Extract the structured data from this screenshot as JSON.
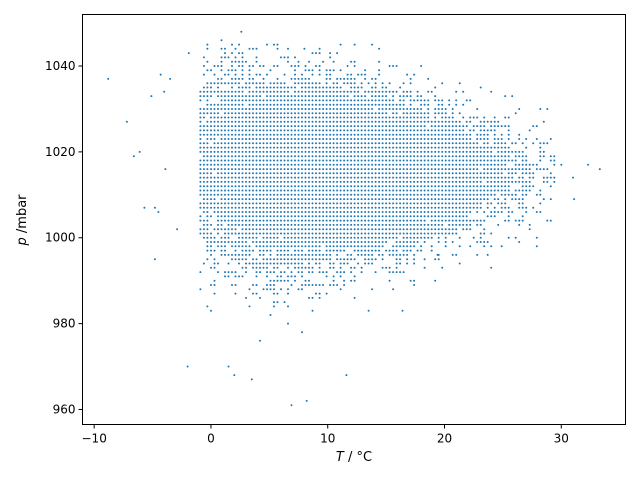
{
  "chart_data": {
    "type": "scatter",
    "title": "",
    "xlabel_var": "T",
    "xlabel_unit": " / °C",
    "ylabel_var": "p",
    "ylabel_unit": " /mbar",
    "xlim": [
      -11,
      35.5
    ],
    "ylim": [
      956.5,
      1052
    ],
    "xticks": [
      -10,
      0,
      10,
      20,
      30
    ],
    "yticks": [
      960,
      980,
      1000,
      1020,
      1040
    ],
    "grid": false,
    "marker_color": "#1f77b4",
    "point_cloud": {
      "description_of_distribution": "dense cloud of weather observations",
      "x_step": 0.3,
      "y_step": 1,
      "core": {
        "x_mean": 11,
        "x_sd": 6.2,
        "y_mean": 1015,
        "y_sd": 10
      },
      "count": 6500
    },
    "outliers": [
      [
        -8.8,
        1037
      ],
      [
        -7.2,
        1027
      ],
      [
        -6.6,
        1019
      ],
      [
        -6.1,
        1020
      ],
      [
        -5.7,
        1007
      ],
      [
        -5.1,
        1033
      ],
      [
        -4.8,
        1007
      ],
      [
        -4.8,
        995
      ],
      [
        -4.5,
        1006
      ],
      [
        -4.3,
        1038
      ],
      [
        -4.0,
        1034
      ],
      [
        -3.9,
        1016
      ],
      [
        -3.5,
        1037
      ],
      [
        -2.9,
        1002
      ],
      [
        -2.0,
        970
      ],
      [
        -1.9,
        1043
      ],
      [
        2.6,
        1048
      ],
      [
        13.8,
        1045
      ],
      [
        8.0,
        1044
      ],
      [
        6.9,
        961
      ],
      [
        8.2,
        962
      ],
      [
        11.6,
        968
      ],
      [
        2.0,
        968
      ],
      [
        3.5,
        967
      ],
      [
        30.0,
        1017
      ],
      [
        31.1,
        1009
      ],
      [
        32.3,
        1017
      ],
      [
        33.3,
        1016
      ],
      [
        31.0,
        1014
      ],
      [
        29.1,
        1012
      ],
      [
        25.8,
        1033
      ],
      [
        25.2,
        1033
      ],
      [
        16.4,
        983
      ],
      [
        19.4,
        996
      ],
      [
        20.7,
        999
      ],
      [
        24.0,
        993
      ]
    ]
  }
}
